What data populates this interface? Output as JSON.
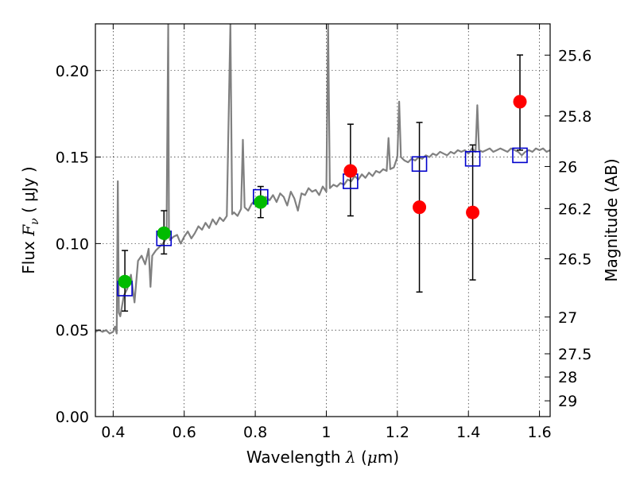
{
  "chart_data": {
    "type": "scatter",
    "xlabel": {
      "prefix": "Wavelength  ",
      "symbol": "λ",
      "unit_open": " (",
      "unit_mu": "μ",
      "unit_rest": "m)"
    },
    "ylabel": {
      "prefix": "Flux  ",
      "symbol": "F",
      "sub": "ν",
      "unit": "  ( μJy )"
    },
    "y2label": "Magnitude (AB)",
    "xlim": [
      0.35,
      1.63
    ],
    "ylim": [
      0.0,
      0.227
    ],
    "x_ticks": [
      {
        "v": 0.4,
        "label": "0.4"
      },
      {
        "v": 0.6,
        "label": "0.6"
      },
      {
        "v": 0.8,
        "label": "0.8"
      },
      {
        "v": 1.0,
        "label": "1"
      },
      {
        "v": 1.2,
        "label": "1.2"
      },
      {
        "v": 1.4,
        "label": "1.4"
      },
      {
        "v": 1.6,
        "label": "1.6"
      }
    ],
    "y_ticks": [
      {
        "v": 0.0,
        "label": "0.00"
      },
      {
        "v": 0.05,
        "label": "0.05"
      },
      {
        "v": 0.1,
        "label": "0.10"
      },
      {
        "v": 0.15,
        "label": "0.15"
      },
      {
        "v": 0.2,
        "label": "0.20"
      }
    ],
    "y2_ticks": [
      {
        "v": 25.6,
        "label": "25.6"
      },
      {
        "v": 25.8,
        "label": "25.8"
      },
      {
        "v": 26.0,
        "label": "26"
      },
      {
        "v": 26.2,
        "label": "26.2"
      },
      {
        "v": 26.5,
        "label": "26.5"
      },
      {
        "v": 27.0,
        "label": "27"
      },
      {
        "v": 27.5,
        "label": "27.5"
      },
      {
        "v": 28.0,
        "label": "28"
      },
      {
        "v": 29.0,
        "label": "29"
      }
    ],
    "grid": true,
    "colors": {
      "model_spectrum": "#808080",
      "observed_optical": "#00bb00",
      "observed_nir": "#ff0000",
      "model_photometry": "#0000cc",
      "errorbar": "#000000"
    },
    "model_spectrum": [
      [
        0.35,
        0.049
      ],
      [
        0.36,
        0.05
      ],
      [
        0.37,
        0.049
      ],
      [
        0.38,
        0.05
      ],
      [
        0.39,
        0.048
      ],
      [
        0.4,
        0.049
      ],
      [
        0.405,
        0.052
      ],
      [
        0.41,
        0.048
      ],
      [
        0.413,
        0.136
      ],
      [
        0.416,
        0.06
      ],
      [
        0.42,
        0.058
      ],
      [
        0.43,
        0.07
      ],
      [
        0.44,
        0.074
      ],
      [
        0.45,
        0.082
      ],
      [
        0.46,
        0.066
      ],
      [
        0.47,
        0.09
      ],
      [
        0.48,
        0.093
      ],
      [
        0.49,
        0.088
      ],
      [
        0.5,
        0.097
      ],
      [
        0.505,
        0.075
      ],
      [
        0.51,
        0.093
      ],
      [
        0.52,
        0.096
      ],
      [
        0.53,
        0.098
      ],
      [
        0.54,
        0.1
      ],
      [
        0.55,
        0.103
      ],
      [
        0.555,
        0.227
      ],
      [
        0.557,
        0.106
      ],
      [
        0.56,
        0.102
      ],
      [
        0.57,
        0.104
      ],
      [
        0.58,
        0.105
      ],
      [
        0.59,
        0.1
      ],
      [
        0.6,
        0.104
      ],
      [
        0.61,
        0.107
      ],
      [
        0.62,
        0.103
      ],
      [
        0.63,
        0.106
      ],
      [
        0.64,
        0.11
      ],
      [
        0.65,
        0.108
      ],
      [
        0.66,
        0.112
      ],
      [
        0.67,
        0.109
      ],
      [
        0.68,
        0.114
      ],
      [
        0.69,
        0.111
      ],
      [
        0.7,
        0.115
      ],
      [
        0.71,
        0.113
      ],
      [
        0.72,
        0.116
      ],
      [
        0.73,
        0.227
      ],
      [
        0.735,
        0.117
      ],
      [
        0.74,
        0.118
      ],
      [
        0.75,
        0.116
      ],
      [
        0.76,
        0.12
      ],
      [
        0.765,
        0.16
      ],
      [
        0.77,
        0.121
      ],
      [
        0.78,
        0.119
      ],
      [
        0.79,
        0.123
      ],
      [
        0.8,
        0.125
      ],
      [
        0.81,
        0.124
      ],
      [
        0.82,
        0.126
      ],
      [
        0.83,
        0.127
      ],
      [
        0.84,
        0.125
      ],
      [
        0.85,
        0.128
      ],
      [
        0.86,
        0.124
      ],
      [
        0.87,
        0.129
      ],
      [
        0.88,
        0.127
      ],
      [
        0.89,
        0.122
      ],
      [
        0.9,
        0.13
      ],
      [
        0.91,
        0.126
      ],
      [
        0.92,
        0.119
      ],
      [
        0.93,
        0.129
      ],
      [
        0.94,
        0.128
      ],
      [
        0.95,
        0.132
      ],
      [
        0.96,
        0.13
      ],
      [
        0.97,
        0.131
      ],
      [
        0.98,
        0.128
      ],
      [
        0.99,
        0.133
      ],
      [
        1.0,
        0.13
      ],
      [
        1.005,
        0.227
      ],
      [
        1.01,
        0.132
      ],
      [
        1.02,
        0.134
      ],
      [
        1.03,
        0.133
      ],
      [
        1.04,
        0.135
      ],
      [
        1.05,
        0.134
      ],
      [
        1.06,
        0.137
      ],
      [
        1.07,
        0.136
      ],
      [
        1.08,
        0.139
      ],
      [
        1.09,
        0.137
      ],
      [
        1.1,
        0.14
      ],
      [
        1.11,
        0.138
      ],
      [
        1.12,
        0.141
      ],
      [
        1.13,
        0.139
      ],
      [
        1.14,
        0.142
      ],
      [
        1.15,
        0.141
      ],
      [
        1.16,
        0.143
      ],
      [
        1.17,
        0.142
      ],
      [
        1.175,
        0.161
      ],
      [
        1.18,
        0.143
      ],
      [
        1.19,
        0.144
      ],
      [
        1.2,
        0.15
      ],
      [
        1.205,
        0.182
      ],
      [
        1.21,
        0.15
      ],
      [
        1.22,
        0.148
      ],
      [
        1.23,
        0.147
      ],
      [
        1.24,
        0.149
      ],
      [
        1.25,
        0.148
      ],
      [
        1.26,
        0.15
      ],
      [
        1.27,
        0.149
      ],
      [
        1.28,
        0.151
      ],
      [
        1.29,
        0.15
      ],
      [
        1.3,
        0.152
      ],
      [
        1.31,
        0.151
      ],
      [
        1.32,
        0.153
      ],
      [
        1.33,
        0.152
      ],
      [
        1.34,
        0.151
      ],
      [
        1.35,
        0.153
      ],
      [
        1.36,
        0.152
      ],
      [
        1.37,
        0.154
      ],
      [
        1.38,
        0.153
      ],
      [
        1.39,
        0.154
      ],
      [
        1.4,
        0.152
      ],
      [
        1.41,
        0.155
      ],
      [
        1.42,
        0.153
      ],
      [
        1.425,
        0.18
      ],
      [
        1.43,
        0.154
      ],
      [
        1.44,
        0.153
      ],
      [
        1.45,
        0.154
      ],
      [
        1.46,
        0.155
      ],
      [
        1.47,
        0.153
      ],
      [
        1.48,
        0.154
      ],
      [
        1.49,
        0.155
      ],
      [
        1.5,
        0.154
      ],
      [
        1.51,
        0.153
      ],
      [
        1.52,
        0.155
      ],
      [
        1.53,
        0.154
      ],
      [
        1.54,
        0.153
      ],
      [
        1.55,
        0.151
      ],
      [
        1.56,
        0.153
      ],
      [
        1.57,
        0.154
      ],
      [
        1.58,
        0.153
      ],
      [
        1.59,
        0.155
      ],
      [
        1.6,
        0.154
      ],
      [
        1.61,
        0.155
      ],
      [
        1.62,
        0.153
      ],
      [
        1.63,
        0.154
      ]
    ],
    "model_photometry": [
      {
        "x": 0.433,
        "y": 0.074
      },
      {
        "x": 0.543,
        "y": 0.103
      },
      {
        "x": 0.815,
        "y": 0.127
      },
      {
        "x": 1.068,
        "y": 0.136
      },
      {
        "x": 1.262,
        "y": 0.146
      },
      {
        "x": 1.412,
        "y": 0.149
      },
      {
        "x": 1.545,
        "y": 0.151
      }
    ],
    "observed": [
      {
        "x": 0.433,
        "y": 0.078,
        "err_lo": 0.017,
        "err_hi": 0.018,
        "band": "optical"
      },
      {
        "x": 0.543,
        "y": 0.106,
        "err_lo": 0.012,
        "err_hi": 0.013,
        "band": "optical"
      },
      {
        "x": 0.815,
        "y": 0.124,
        "err_lo": 0.009,
        "err_hi": 0.009,
        "band": "optical"
      },
      {
        "x": 1.068,
        "y": 0.142,
        "err_lo": 0.026,
        "err_hi": 0.027,
        "band": "nir"
      },
      {
        "x": 1.262,
        "y": 0.121,
        "err_lo": 0.049,
        "err_hi": 0.049,
        "band": "nir"
      },
      {
        "x": 1.412,
        "y": 0.118,
        "err_lo": 0.039,
        "err_hi": 0.039,
        "band": "nir"
      },
      {
        "x": 1.545,
        "y": 0.182,
        "err_lo": 0.028,
        "err_hi": 0.027,
        "band": "nir"
      }
    ]
  }
}
